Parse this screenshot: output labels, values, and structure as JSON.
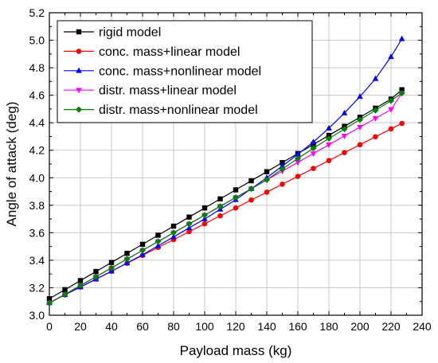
{
  "chart_data": {
    "type": "line",
    "xlabel": "Payload mass (kg)",
    "ylabel": "Angle of attack (deg)",
    "xlim": [
      0,
      240
    ],
    "ylim": [
      3.0,
      5.2
    ],
    "xticks": [
      "0",
      "20",
      "40",
      "60",
      "80",
      "100",
      "120",
      "140",
      "160",
      "180",
      "200",
      "220",
      "240"
    ],
    "yticks": [
      "3.0",
      "3.2",
      "3.4",
      "3.6",
      "3.8",
      "4.0",
      "4.2",
      "4.4",
      "4.6",
      "4.8",
      "5.0",
      "5.2"
    ],
    "grid": true,
    "legend_position": "top-left",
    "x": [
      0,
      10,
      20,
      30,
      40,
      50,
      60,
      70,
      80,
      90,
      100,
      110,
      120,
      130,
      140,
      150,
      160,
      170,
      180,
      190,
      200,
      210,
      220,
      227
    ],
    "series": [
      {
        "name": "rigid model",
        "color": "#000000",
        "marker": "square",
        "values": [
          3.12,
          3.186,
          3.252,
          3.318,
          3.384,
          3.45,
          3.516,
          3.582,
          3.648,
          3.714,
          3.78,
          3.846,
          3.912,
          3.978,
          4.044,
          4.11,
          4.176,
          4.242,
          4.308,
          4.374,
          4.44,
          4.506,
          4.572,
          4.64
        ]
      },
      {
        "name": "conc. mass+linear model",
        "color": "#ff0000",
        "marker": "circle",
        "values": [
          3.09,
          3.148,
          3.205,
          3.263,
          3.32,
          3.378,
          3.435,
          3.493,
          3.55,
          3.608,
          3.665,
          3.723,
          3.78,
          3.838,
          3.895,
          3.953,
          4.01,
          4.068,
          4.125,
          4.183,
          4.24,
          4.298,
          4.355,
          4.395
        ]
      },
      {
        "name": "conc. mass+nonlinear model",
        "color": "#0000ff",
        "marker": "triangle-up",
        "values": [
          3.09,
          3.15,
          3.205,
          3.262,
          3.32,
          3.38,
          3.44,
          3.505,
          3.57,
          3.635,
          3.7,
          3.77,
          3.84,
          3.92,
          4.0,
          4.085,
          4.17,
          4.26,
          4.36,
          4.47,
          4.59,
          4.72,
          4.88,
          5.01
        ]
      },
      {
        "name": "distr. mass+linear model",
        "color": "#ff00ff",
        "marker": "triangle-down",
        "values": [
          3.088,
          3.152,
          3.216,
          3.28,
          3.344,
          3.408,
          3.472,
          3.536,
          3.6,
          3.664,
          3.728,
          3.792,
          3.856,
          3.92,
          3.984,
          4.048,
          4.112,
          4.176,
          4.24,
          4.304,
          4.368,
          4.432,
          4.496,
          4.615
        ]
      },
      {
        "name": "distr. mass+nonlinear model",
        "color": "#008000",
        "marker": "diamond",
        "values": [
          3.088,
          3.152,
          3.216,
          3.28,
          3.344,
          3.408,
          3.472,
          3.536,
          3.6,
          3.664,
          3.728,
          3.792,
          3.856,
          3.92,
          3.984,
          4.064,
          4.14,
          4.214,
          4.285,
          4.354,
          4.422,
          4.49,
          4.56,
          4.615
        ]
      }
    ]
  }
}
